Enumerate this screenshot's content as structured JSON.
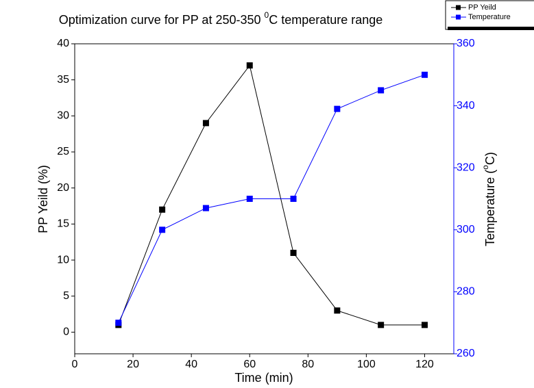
{
  "chart_data": {
    "type": "line",
    "title": [
      "Optimization curve for PP at 250-350 ",
      "0",
      "C temperature range"
    ],
    "x_label": "Time (min)",
    "y_label": "PP Yeild (%)",
    "y2_label": [
      "Temperature (",
      "o",
      "C)"
    ],
    "x": [
      15,
      30,
      45,
      60,
      75,
      90,
      105,
      120
    ],
    "series": [
      {
        "name": "PP Yeild",
        "color": "#000000",
        "values": [
          1,
          17,
          29,
          37,
          11,
          3,
          1,
          1
        ]
      },
      {
        "name": "Temperature",
        "color": "#0000ff",
        "axis": "y2",
        "values": [
          270,
          300,
          307,
          310,
          310,
          339,
          345,
          350
        ]
      }
    ],
    "xlim": [
      0,
      130
    ],
    "xticks": [
      0,
      20,
      40,
      60,
      80,
      100,
      120
    ],
    "ylim": [
      -3,
      40
    ],
    "yticks": [
      0,
      5,
      10,
      15,
      20,
      25,
      30,
      35,
      40
    ],
    "y2lim": [
      260,
      360
    ],
    "y2ticks": [
      260,
      280,
      300,
      320,
      340,
      360
    ],
    "y2_color": "#0000ff",
    "legend": "top-right"
  }
}
